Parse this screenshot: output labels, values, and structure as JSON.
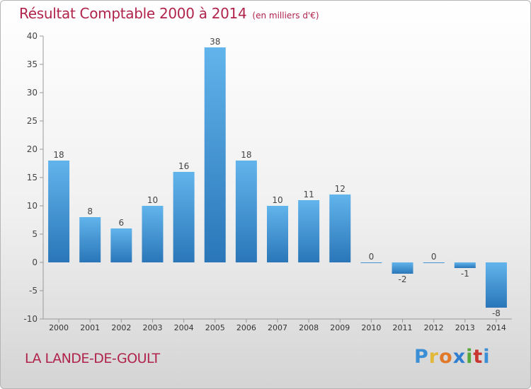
{
  "header": {
    "title": "Résultat Comptable 2000 à 2014",
    "subtitle": "(en milliers d'€)"
  },
  "footer": {
    "place": "LA LANDE-DE-GOULT",
    "brand_letters": [
      "P",
      "r",
      "o",
      "x",
      "i",
      "t",
      "i"
    ]
  },
  "colors": {
    "title": "#b0244c",
    "bar_top": "#62b4ec",
    "bar_bottom": "#2a76b8"
  },
  "chart_data": {
    "type": "bar",
    "title": "Résultat Comptable 2000 à 2014",
    "xlabel": "",
    "ylabel": "",
    "categories": [
      "2000",
      "2001",
      "2002",
      "2003",
      "2004",
      "2005",
      "2006",
      "2007",
      "2008",
      "2009",
      "2010",
      "2011",
      "2012",
      "2013",
      "2014"
    ],
    "values": [
      18,
      8,
      6,
      10,
      16,
      38,
      18,
      10,
      11,
      12,
      0,
      -2,
      0,
      -1,
      -8
    ],
    "ylim": [
      -10,
      40
    ],
    "yticks": [
      -10,
      -5,
      0,
      5,
      10,
      15,
      20,
      25,
      30,
      35,
      40
    ],
    "grid": false,
    "legend": "none"
  }
}
